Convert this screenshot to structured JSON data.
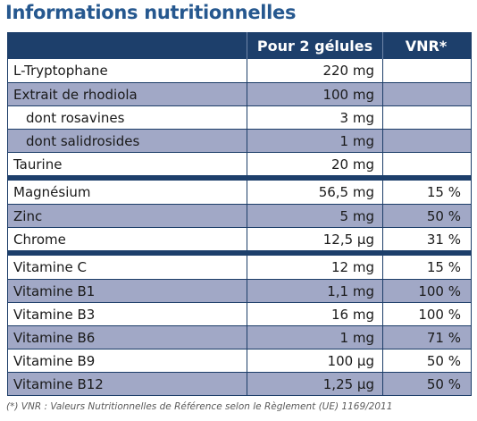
{
  "title": "Informations nutritionnelles",
  "table": {
    "header": {
      "col1": "",
      "col2": "Pour 2 gélules",
      "col3": "VNR*"
    },
    "groups": [
      [
        {
          "name": "L-Tryptophane",
          "amount": "220 mg",
          "vnr": "",
          "indent": false
        },
        {
          "name": "Extrait de rhodiola",
          "amount": "100 mg",
          "vnr": "",
          "indent": false
        },
        {
          "name": "dont rosavines",
          "amount": "3 mg",
          "vnr": "",
          "indent": true
        },
        {
          "name": "dont salidrosides",
          "amount": "1 mg",
          "vnr": "",
          "indent": true
        },
        {
          "name": "Taurine",
          "amount": "20 mg",
          "vnr": "",
          "indent": false
        }
      ],
      [
        {
          "name": "Magnésium",
          "amount": "56,5 mg",
          "vnr": "15 %",
          "indent": false
        },
        {
          "name": "Zinc",
          "amount": "5 mg",
          "vnr": "50 %",
          "indent": false
        },
        {
          "name": "Chrome",
          "amount": "12,5 µg",
          "vnr": "31 %",
          "indent": false
        }
      ],
      [
        {
          "name": "Vitamine C",
          "amount": "12 mg",
          "vnr": "15 %",
          "indent": false
        },
        {
          "name": "Vitamine B1",
          "amount": "1,1 mg",
          "vnr": "100 %",
          "indent": false
        },
        {
          "name": "Vitamine B3",
          "amount": "16 mg",
          "vnr": "100 %",
          "indent": false
        },
        {
          "name": "Vitamine B6",
          "amount": "1 mg",
          "vnr": "71 %",
          "indent": false
        },
        {
          "name": "Vitamine B9",
          "amount": "100 µg",
          "vnr": "50 %",
          "indent": false
        },
        {
          "name": "Vitamine B12",
          "amount": "1,25 µg",
          "vnr": "50 %",
          "indent": false
        }
      ]
    ]
  },
  "footnote": "(*) VNR : Valeurs Nutritionnelles de Référence selon le Règlement (UE) 1169/2011",
  "colors": {
    "title": "#26588f",
    "header_bg": "#1d3f6b",
    "shaded_row": "#a1a8c6",
    "white_row": "#ffffff"
  }
}
